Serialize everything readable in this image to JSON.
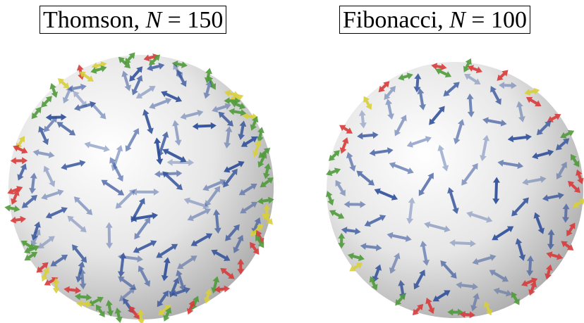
{
  "panels": [
    {
      "method": "Thomson,",
      "variable": "N",
      "value_text": "= 150"
    },
    {
      "method": "Fibonacci,",
      "variable": "N",
      "value_text": "= 100"
    }
  ]
}
